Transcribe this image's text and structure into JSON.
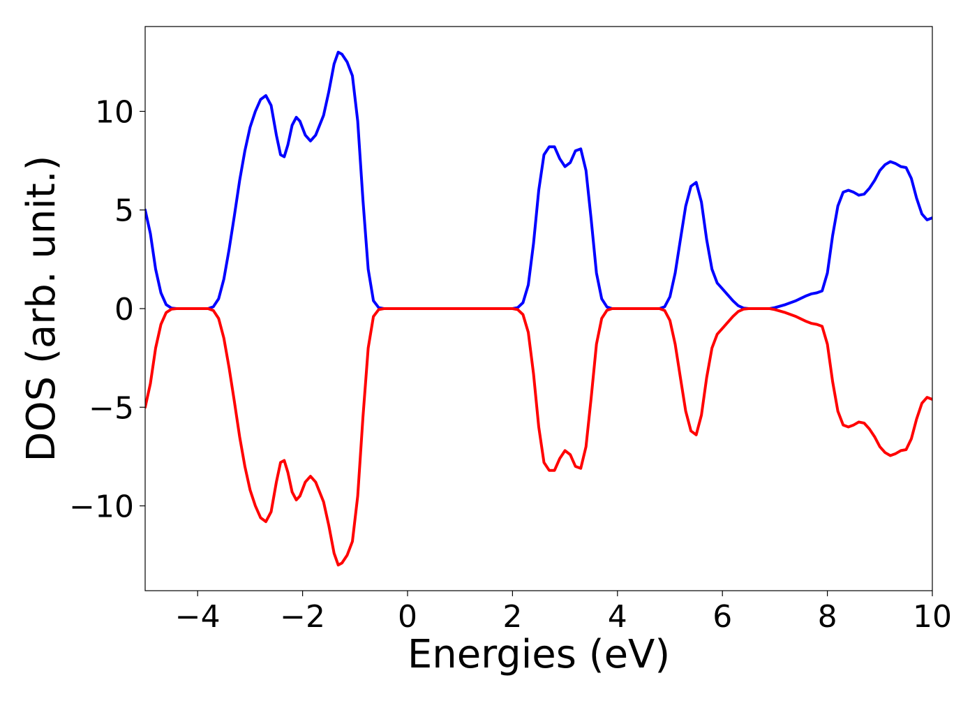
{
  "chart_data": {
    "type": "line",
    "title": "",
    "xlabel": "Energies (eV)",
    "ylabel": "DOS (arb. unit.)",
    "xlim": [
      -5,
      10
    ],
    "ylim": [
      -14.3,
      14.3
    ],
    "grid": false,
    "legend": "none",
    "x_ticks": [
      -4,
      -2,
      0,
      2,
      4,
      6,
      8,
      10
    ],
    "x_tick_labels": [
      "−4",
      "−2",
      "0",
      "2",
      "4",
      "6",
      "8",
      "10"
    ],
    "y_ticks": [
      10,
      5,
      0,
      -5,
      -10
    ],
    "y_tick_labels": [
      "10",
      "5",
      "0",
      "−5",
      "−10"
    ],
    "series": [
      {
        "color": "#0000ff",
        "points": [
          [
            -5.0,
            5.0
          ],
          [
            -4.9,
            3.8
          ],
          [
            -4.8,
            2.0
          ],
          [
            -4.7,
            0.8
          ],
          [
            -4.6,
            0.2
          ],
          [
            -4.5,
            0.03
          ],
          [
            -4.4,
            0.0
          ],
          [
            -3.8,
            0.0
          ],
          [
            -3.7,
            0.1
          ],
          [
            -3.6,
            0.5
          ],
          [
            -3.5,
            1.5
          ],
          [
            -3.4,
            3.0
          ],
          [
            -3.3,
            4.7
          ],
          [
            -3.2,
            6.5
          ],
          [
            -3.1,
            8.0
          ],
          [
            -3.0,
            9.2
          ],
          [
            -2.9,
            10.0
          ],
          [
            -2.8,
            10.6
          ],
          [
            -2.7,
            10.8
          ],
          [
            -2.6,
            10.3
          ],
          [
            -2.5,
            8.8
          ],
          [
            -2.42,
            7.8
          ],
          [
            -2.35,
            7.7
          ],
          [
            -2.28,
            8.3
          ],
          [
            -2.2,
            9.3
          ],
          [
            -2.12,
            9.7
          ],
          [
            -2.05,
            9.5
          ],
          [
            -1.95,
            8.8
          ],
          [
            -1.85,
            8.5
          ],
          [
            -1.75,
            8.8
          ],
          [
            -1.6,
            9.8
          ],
          [
            -1.5,
            11.0
          ],
          [
            -1.4,
            12.4
          ],
          [
            -1.32,
            13.0
          ],
          [
            -1.25,
            12.9
          ],
          [
            -1.15,
            12.5
          ],
          [
            -1.05,
            11.8
          ],
          [
            -0.95,
            9.5
          ],
          [
            -0.85,
            5.5
          ],
          [
            -0.75,
            2.0
          ],
          [
            -0.65,
            0.4
          ],
          [
            -0.55,
            0.05
          ],
          [
            -0.45,
            0.0
          ],
          [
            2.0,
            0.0
          ],
          [
            2.1,
            0.05
          ],
          [
            2.2,
            0.3
          ],
          [
            2.3,
            1.2
          ],
          [
            2.4,
            3.3
          ],
          [
            2.5,
            6.0
          ],
          [
            2.6,
            7.8
          ],
          [
            2.7,
            8.2
          ],
          [
            2.8,
            8.2
          ],
          [
            2.9,
            7.6
          ],
          [
            3.0,
            7.2
          ],
          [
            3.1,
            7.4
          ],
          [
            3.2,
            8.0
          ],
          [
            3.3,
            8.1
          ],
          [
            3.4,
            7.0
          ],
          [
            3.5,
            4.5
          ],
          [
            3.6,
            1.8
          ],
          [
            3.7,
            0.5
          ],
          [
            3.8,
            0.08
          ],
          [
            3.9,
            0.0
          ],
          [
            4.8,
            0.0
          ],
          [
            4.9,
            0.1
          ],
          [
            5.0,
            0.6
          ],
          [
            5.1,
            1.8
          ],
          [
            5.2,
            3.5
          ],
          [
            5.3,
            5.2
          ],
          [
            5.4,
            6.2
          ],
          [
            5.5,
            6.4
          ],
          [
            5.6,
            5.4
          ],
          [
            5.7,
            3.5
          ],
          [
            5.8,
            2.0
          ],
          [
            5.9,
            1.3
          ],
          [
            6.0,
            1.0
          ],
          [
            6.1,
            0.7
          ],
          [
            6.2,
            0.4
          ],
          [
            6.3,
            0.15
          ],
          [
            6.4,
            0.03
          ],
          [
            6.5,
            0.0
          ],
          [
            6.9,
            0.0
          ],
          [
            7.0,
            0.05
          ],
          [
            7.2,
            0.2
          ],
          [
            7.4,
            0.4
          ],
          [
            7.6,
            0.65
          ],
          [
            7.7,
            0.75
          ],
          [
            7.8,
            0.8
          ],
          [
            7.9,
            0.9
          ],
          [
            8.0,
            1.8
          ],
          [
            8.1,
            3.7
          ],
          [
            8.2,
            5.2
          ],
          [
            8.3,
            5.9
          ],
          [
            8.4,
            6.0
          ],
          [
            8.5,
            5.9
          ],
          [
            8.6,
            5.75
          ],
          [
            8.7,
            5.8
          ],
          [
            8.8,
            6.1
          ],
          [
            8.9,
            6.5
          ],
          [
            9.0,
            7.0
          ],
          [
            9.1,
            7.3
          ],
          [
            9.2,
            7.45
          ],
          [
            9.3,
            7.35
          ],
          [
            9.4,
            7.2
          ],
          [
            9.5,
            7.15
          ],
          [
            9.6,
            6.6
          ],
          [
            9.7,
            5.6
          ],
          [
            9.8,
            4.8
          ],
          [
            9.9,
            4.5
          ],
          [
            10.0,
            4.6
          ]
        ]
      },
      {
        "color": "#ff0000",
        "points": [
          [
            -5.0,
            -5.0
          ],
          [
            -4.9,
            -3.8
          ],
          [
            -4.8,
            -2.0
          ],
          [
            -4.7,
            -0.8
          ],
          [
            -4.6,
            -0.2
          ],
          [
            -4.5,
            -0.03
          ],
          [
            -4.4,
            0.0
          ],
          [
            -3.8,
            0.0
          ],
          [
            -3.7,
            -0.1
          ],
          [
            -3.6,
            -0.5
          ],
          [
            -3.5,
            -1.5
          ],
          [
            -3.4,
            -3.0
          ],
          [
            -3.3,
            -4.7
          ],
          [
            -3.2,
            -6.5
          ],
          [
            -3.1,
            -8.0
          ],
          [
            -3.0,
            -9.2
          ],
          [
            -2.9,
            -10.0
          ],
          [
            -2.8,
            -10.6
          ],
          [
            -2.7,
            -10.8
          ],
          [
            -2.6,
            -10.3
          ],
          [
            -2.5,
            -8.8
          ],
          [
            -2.42,
            -7.8
          ],
          [
            -2.35,
            -7.7
          ],
          [
            -2.28,
            -8.3
          ],
          [
            -2.2,
            -9.3
          ],
          [
            -2.12,
            -9.7
          ],
          [
            -2.05,
            -9.5
          ],
          [
            -1.95,
            -8.8
          ],
          [
            -1.85,
            -8.5
          ],
          [
            -1.75,
            -8.8
          ],
          [
            -1.6,
            -9.8
          ],
          [
            -1.5,
            -11.0
          ],
          [
            -1.4,
            -12.4
          ],
          [
            -1.32,
            -13.0
          ],
          [
            -1.25,
            -12.9
          ],
          [
            -1.15,
            -12.5
          ],
          [
            -1.05,
            -11.8
          ],
          [
            -0.95,
            -9.5
          ],
          [
            -0.85,
            -5.5
          ],
          [
            -0.75,
            -2.0
          ],
          [
            -0.65,
            -0.4
          ],
          [
            -0.55,
            -0.05
          ],
          [
            -0.45,
            0.0
          ],
          [
            2.0,
            0.0
          ],
          [
            2.1,
            -0.05
          ],
          [
            2.2,
            -0.3
          ],
          [
            2.3,
            -1.2
          ],
          [
            2.4,
            -3.3
          ],
          [
            2.5,
            -6.0
          ],
          [
            2.6,
            -7.8
          ],
          [
            2.7,
            -8.2
          ],
          [
            2.8,
            -8.2
          ],
          [
            2.9,
            -7.6
          ],
          [
            3.0,
            -7.2
          ],
          [
            3.1,
            -7.4
          ],
          [
            3.2,
            -8.0
          ],
          [
            3.3,
            -8.1
          ],
          [
            3.4,
            -7.0
          ],
          [
            3.5,
            -4.5
          ],
          [
            3.6,
            -1.8
          ],
          [
            3.7,
            -0.5
          ],
          [
            3.8,
            -0.08
          ],
          [
            3.9,
            0.0
          ],
          [
            4.8,
            0.0
          ],
          [
            4.9,
            -0.1
          ],
          [
            5.0,
            -0.6
          ],
          [
            5.1,
            -1.8
          ],
          [
            5.2,
            -3.5
          ],
          [
            5.3,
            -5.2
          ],
          [
            5.4,
            -6.2
          ],
          [
            5.5,
            -6.4
          ],
          [
            5.6,
            -5.4
          ],
          [
            5.7,
            -3.5
          ],
          [
            5.8,
            -2.0
          ],
          [
            5.9,
            -1.3
          ],
          [
            6.0,
            -1.0
          ],
          [
            6.1,
            -0.7
          ],
          [
            6.2,
            -0.4
          ],
          [
            6.3,
            -0.15
          ],
          [
            6.4,
            -0.03
          ],
          [
            6.5,
            0.0
          ],
          [
            6.9,
            0.0
          ],
          [
            7.0,
            -0.05
          ],
          [
            7.2,
            -0.2
          ],
          [
            7.4,
            -0.4
          ],
          [
            7.6,
            -0.65
          ],
          [
            7.7,
            -0.75
          ],
          [
            7.8,
            -0.8
          ],
          [
            7.9,
            -0.9
          ],
          [
            8.0,
            -1.8
          ],
          [
            8.1,
            -3.7
          ],
          [
            8.2,
            -5.2
          ],
          [
            8.3,
            -5.9
          ],
          [
            8.4,
            -6.0
          ],
          [
            8.5,
            -5.9
          ],
          [
            8.6,
            -5.75
          ],
          [
            8.7,
            -5.8
          ],
          [
            8.8,
            -6.1
          ],
          [
            8.9,
            -6.5
          ],
          [
            9.0,
            -7.0
          ],
          [
            9.1,
            -7.3
          ],
          [
            9.2,
            -7.45
          ],
          [
            9.3,
            -7.35
          ],
          [
            9.4,
            -7.2
          ],
          [
            9.5,
            -7.15
          ],
          [
            9.6,
            -6.6
          ],
          [
            9.7,
            -5.6
          ],
          [
            9.8,
            -4.8
          ],
          [
            9.9,
            -4.5
          ],
          [
            10.0,
            -4.6
          ]
        ]
      }
    ]
  }
}
